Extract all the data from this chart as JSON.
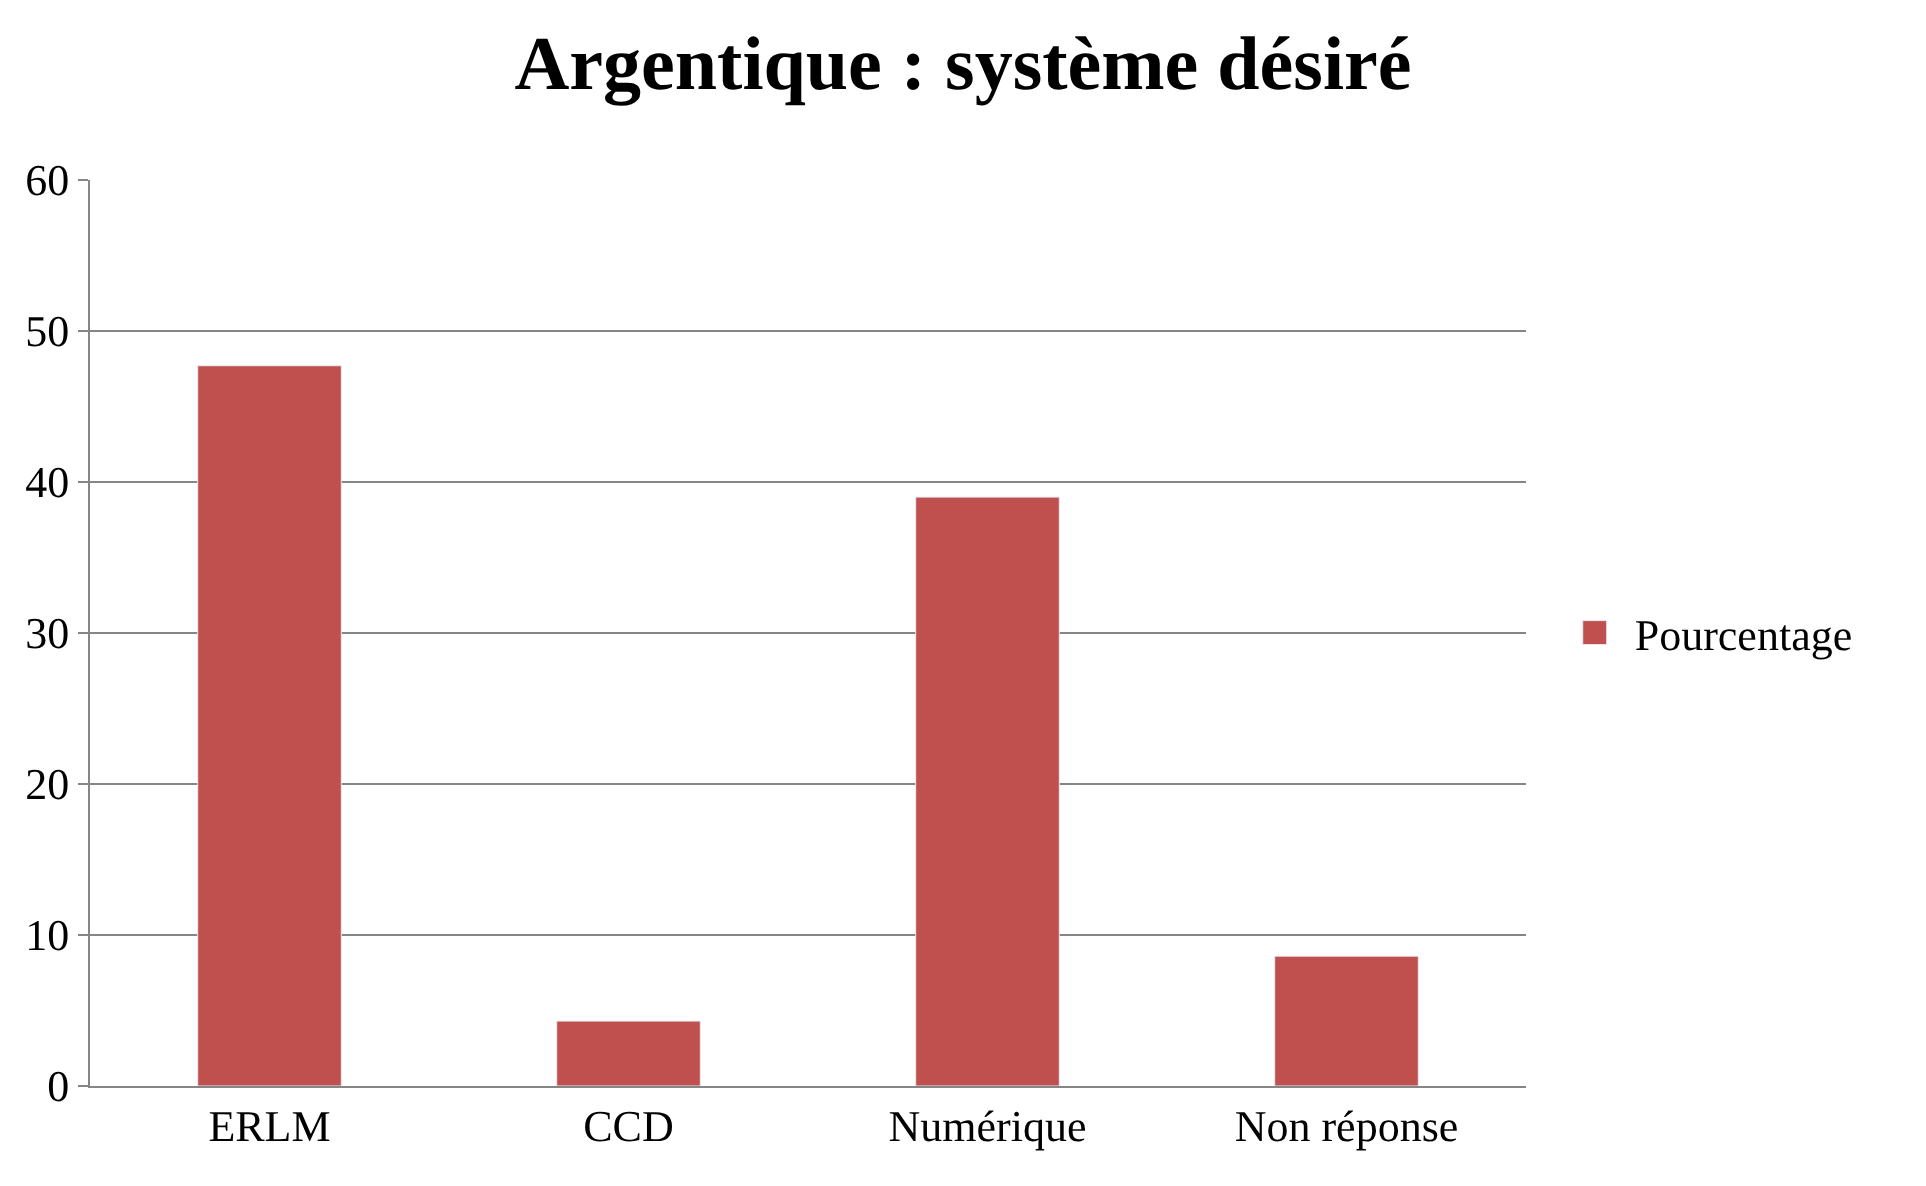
{
  "chart_data": {
    "type": "bar",
    "title": "Argentique : système désiré",
    "categories": [
      "ERLM",
      "CCD",
      "Numérique",
      "Non réponse"
    ],
    "series": [
      {
        "name": "Pourcentage",
        "color": "#c0504d",
        "values": [
          47.7,
          4.3,
          39.0,
          8.6
        ]
      }
    ],
    "ylim": [
      0,
      60
    ],
    "yticks": [
      0,
      10,
      20,
      30,
      40,
      50,
      60
    ],
    "grid": "y",
    "legend": "right"
  }
}
